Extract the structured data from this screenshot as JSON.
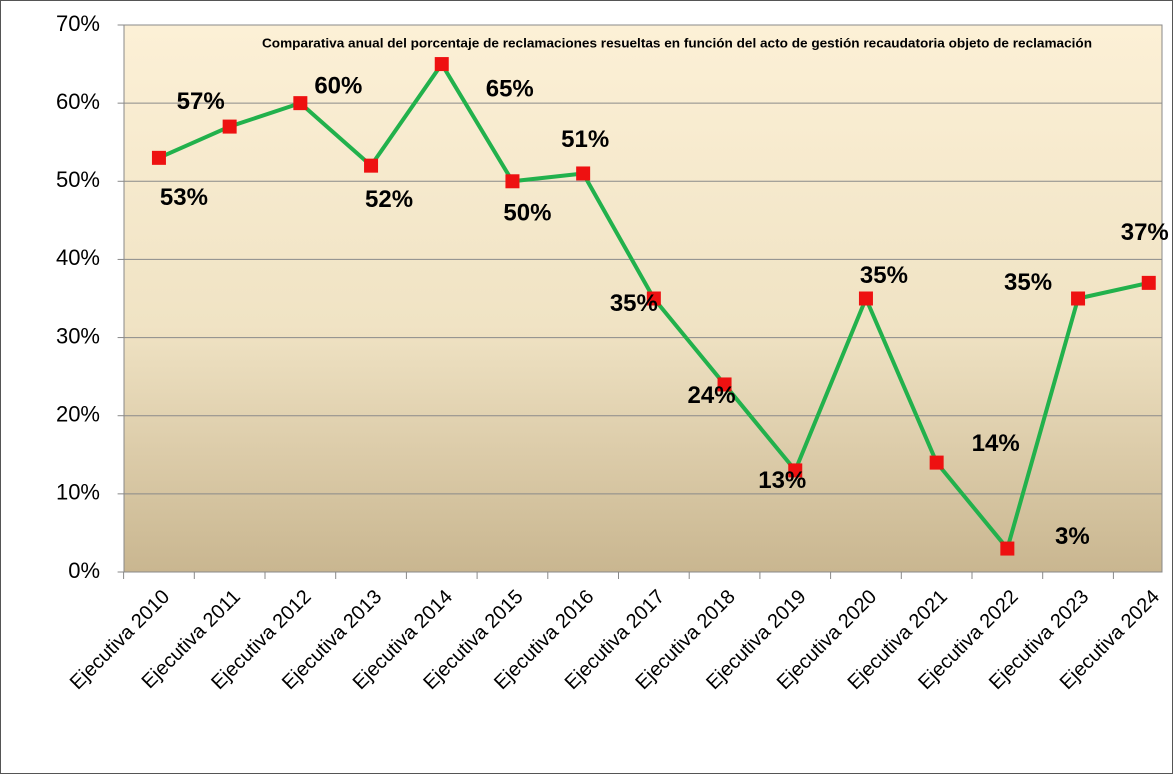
{
  "chart_data": {
    "type": "line",
    "title": "Comparativa anual del porcentaje de reclamaciones resueltas en función del acto de gestión recaudatoria objeto de reclamación",
    "categories": [
      "Ejecutiva 2010",
      "Ejecutiva 2011",
      "Ejecutiva 2012",
      "Ejecutiva 2013",
      "Ejecutiva 2014",
      "Ejecutiva 2015",
      "Ejecutiva 2016",
      "Ejecutiva 2017",
      "Ejecutiva 2018",
      "Ejecutiva 2019",
      "Ejecutiva 2020",
      "Ejecutiva 2021",
      "Ejecutiva 2022",
      "Ejecutiva 2023",
      "Ejecutiva 2024"
    ],
    "series": [
      {
        "color": "#22b14c",
        "marker_color": "#ee1111",
        "values": [
          53,
          57,
          60,
          52,
          65,
          50,
          51,
          35,
          24,
          13,
          35,
          14,
          3,
          35,
          37
        ],
        "value_labels": [
          "53%",
          "57%",
          "60%",
          "52%",
          "65%",
          "50%",
          "51%",
          "35%",
          "24%",
          "13%",
          "35%",
          "14%",
          "3%",
          "35%",
          "37%"
        ]
      }
    ],
    "ylim": [
      0,
      70
    ],
    "yticks": [
      {
        "value": 0,
        "label": "0%"
      },
      {
        "value": 10,
        "label": "10%"
      },
      {
        "value": 20,
        "label": "20%"
      },
      {
        "value": 30,
        "label": "30%"
      },
      {
        "value": 40,
        "label": "40%"
      },
      {
        "value": 50,
        "label": "50%"
      },
      {
        "value": 60,
        "label": "60%"
      },
      {
        "value": 70,
        "label": "70%"
      }
    ],
    "grid": true
  }
}
